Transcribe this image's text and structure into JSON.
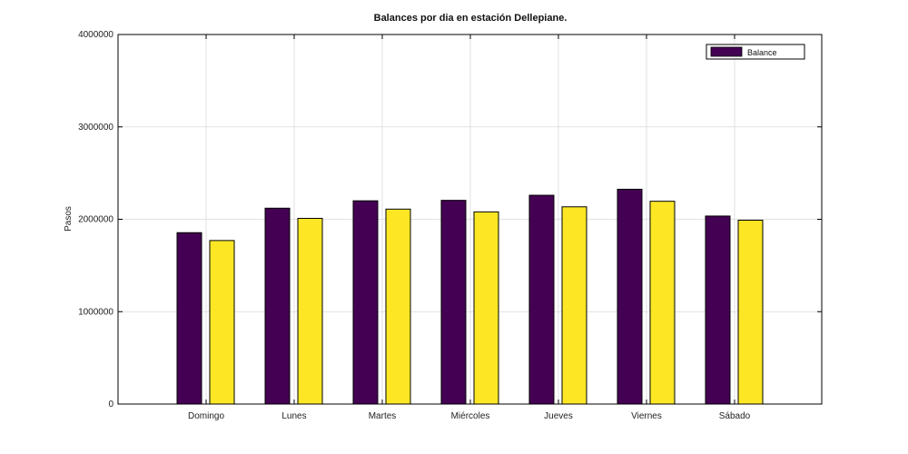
{
  "chart_data": {
    "type": "bar",
    "title": "Balances por dia en estación Dellepiane.",
    "xlabel": "",
    "ylabel": "Pasos",
    "ylim": [
      0,
      4000000
    ],
    "yticks": [
      0,
      1000000,
      2000000,
      3000000,
      4000000
    ],
    "ytick_labels": [
      "0",
      "1000000",
      "2000000",
      "3000000",
      "4000000"
    ],
    "categories": [
      "Domingo",
      "Lunes",
      "Martes",
      "Miércoles",
      "Jueves",
      "Viernes",
      "Sábado"
    ],
    "series": [
      {
        "name": "Balance",
        "color": "#440154",
        "values": [
          1855000,
          2120000,
          2200000,
          2205000,
          2260000,
          2325000,
          2035000
        ]
      },
      {
        "color": "#fde725",
        "values": [
          1770000,
          2010000,
          2110000,
          2080000,
          2135000,
          2195000,
          1990000
        ]
      }
    ],
    "grid": true,
    "legend_position": "top-right"
  }
}
